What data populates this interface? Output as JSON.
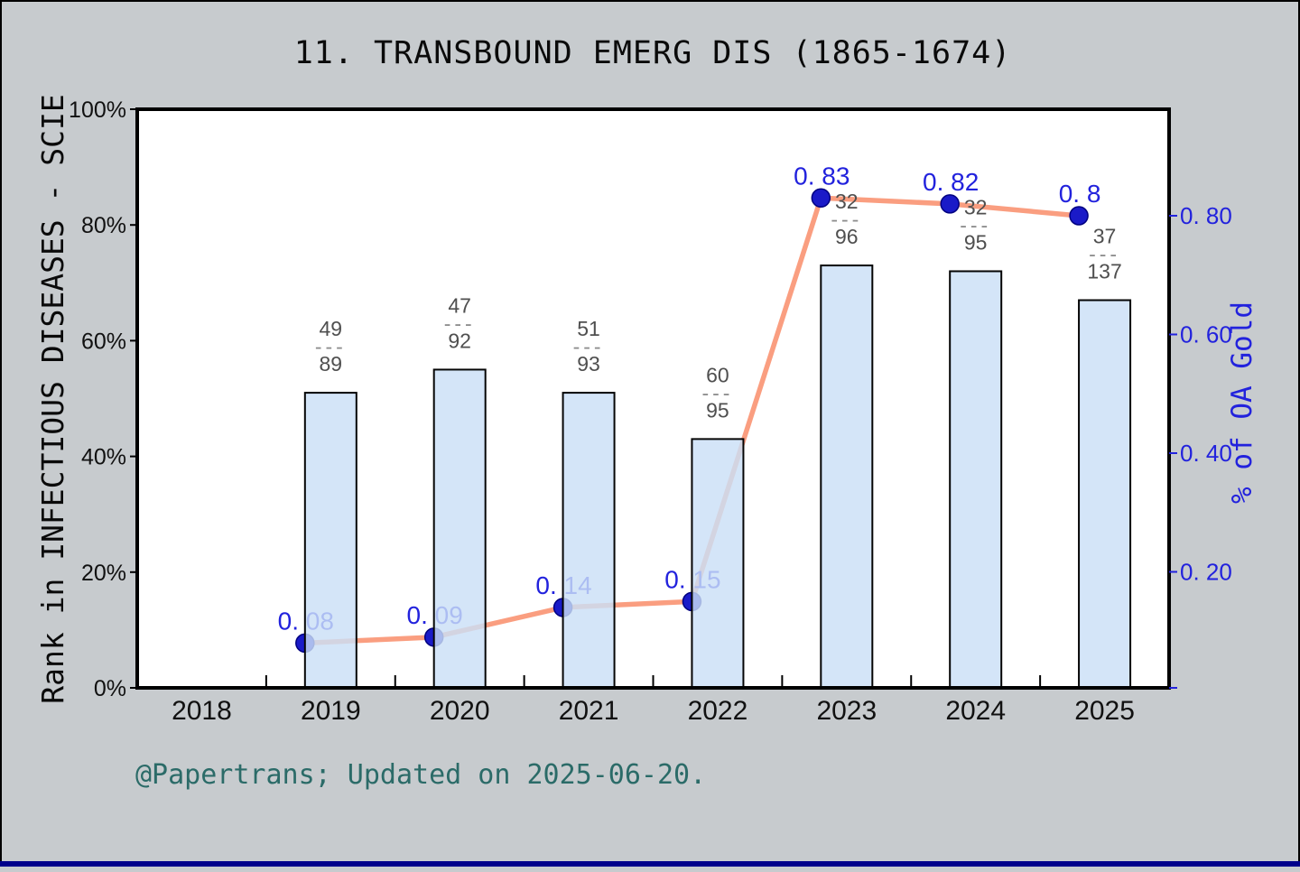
{
  "title": "11. TRANSBOUND EMERG DIS (1865-1674)",
  "footer": {
    "text": "@Papertrans; Updated on 2025-06-20."
  },
  "colors": {
    "background": "#c7cbce",
    "plot_background": "#ffffff",
    "frame": "#000000",
    "bar_fill": "#cbdff6",
    "bar_border": "#050505",
    "line": "#fa9e80",
    "dot_fill": "#1a1ac8",
    "dot_border": "#000080",
    "point_label": "#2222dd",
    "right_axis_blue": "#2222dd",
    "fraction_text": "#4f4f4f",
    "fraction_dash": "#8c8c8c",
    "footer_teal": "#2b6b68",
    "bottom_strip": "#00008b"
  },
  "chart_data": {
    "type": "bar-line-combo",
    "title": "11. TRANSBOUND EMERG DIS (1865-1674)",
    "grid": "off",
    "legend": "none",
    "categories": [
      "2018",
      "2019",
      "2020",
      "2021",
      "2022",
      "2023",
      "2024",
      "2025"
    ],
    "left_axis": {
      "label": "Rank in INFECTIOUS DISEASES - SCIE",
      "tick_labels": [
        "0%",
        "20%",
        "40%",
        "60%",
        "80%",
        "100%"
      ],
      "tick_values": [
        0,
        20,
        40,
        60,
        80,
        100
      ],
      "range": [
        0,
        100
      ]
    },
    "right_axis": {
      "label": "% of OA Gold",
      "tick_labels": [
        "0. 20",
        "0. 40",
        "0. 60",
        "0. 80"
      ],
      "tick_values": [
        0.2,
        0.4,
        0.6,
        0.8
      ],
      "range": [
        0,
        1.0
      ]
    },
    "bars": {
      "series_name": "Rank in INFECTIOUS DISEASES - SCIE",
      "years": [
        "2019",
        "2020",
        "2021",
        "2022",
        "2023",
        "2024",
        "2025"
      ],
      "height_percent": [
        51,
        55,
        51,
        43,
        73,
        72,
        67
      ],
      "fraction_labels": [
        {
          "numerator": "49",
          "denominator": "89"
        },
        {
          "numerator": "47",
          "denominator": "92"
        },
        {
          "numerator": "51",
          "denominator": "93"
        },
        {
          "numerator": "60",
          "denominator": "95"
        },
        {
          "numerator": "32",
          "denominator": "96"
        },
        {
          "numerator": "32",
          "denominator": "95"
        },
        {
          "numerator": "37",
          "denominator": "137"
        }
      ]
    },
    "line": {
      "series_name": "% of OA Gold",
      "years": [
        "2019",
        "2020",
        "2021",
        "2022",
        "2023",
        "2024",
        "2025"
      ],
      "values": [
        0.08,
        0.09,
        0.14,
        0.15,
        0.83,
        0.82,
        0.8
      ],
      "point_labels": [
        "0. 08",
        "0. 09",
        "0. 14",
        "0. 15",
        "0. 83",
        "0. 82",
        "0. 8"
      ]
    }
  }
}
